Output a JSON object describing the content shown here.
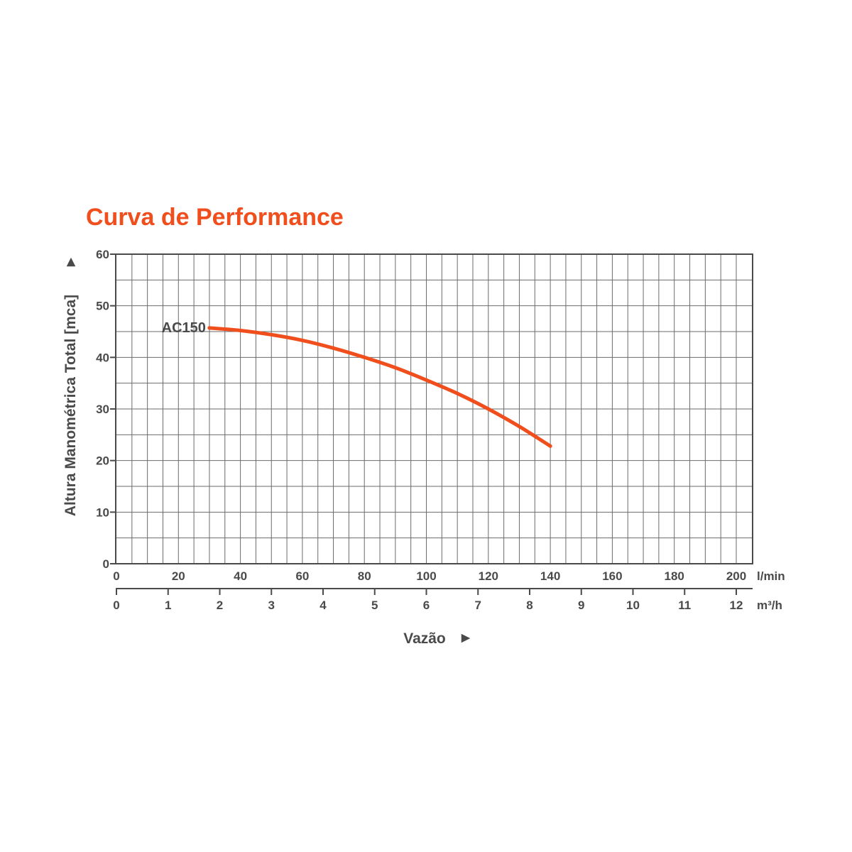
{
  "chart_data": {
    "type": "line",
    "title": "Curva de Performance",
    "ylabel": "Altura Manométrica Total [mca]",
    "xlabel": "Vazão",
    "ylim": [
      0,
      60
    ],
    "y_ticks": [
      "0",
      "10",
      "20",
      "30",
      "40",
      "50",
      "60"
    ],
    "xlim": [
      0,
      205
    ],
    "x_ticks_lmin": [
      "0",
      "20",
      "40",
      "60",
      "80",
      "100",
      "120",
      "140",
      "160",
      "180",
      "200"
    ],
    "x_unit_lmin": "l/min",
    "x_ticks_m3h": [
      "0",
      "1",
      "2",
      "3",
      "4",
      "5",
      "6",
      "7",
      "8",
      "9",
      "10",
      "11",
      "12"
    ],
    "x_unit_m3h": "m³/h",
    "grid": true,
    "series": [
      {
        "name": "AC150",
        "x": [
          30,
          40,
          50,
          60,
          70,
          80,
          90,
          100,
          110,
          120,
          130,
          140
        ],
        "y": [
          45.7,
          45.2,
          44.4,
          43.3,
          41.8,
          40.0,
          38.0,
          35.6,
          33.0,
          30.0,
          26.6,
          22.8
        ]
      }
    ],
    "colors": {
      "series": "#f04e1d",
      "title": "#f04e1d",
      "text": "#4a4a4a",
      "grid": "#6b6b6b",
      "axis": "#4a4a4a"
    }
  },
  "arrow_glyph": "►"
}
